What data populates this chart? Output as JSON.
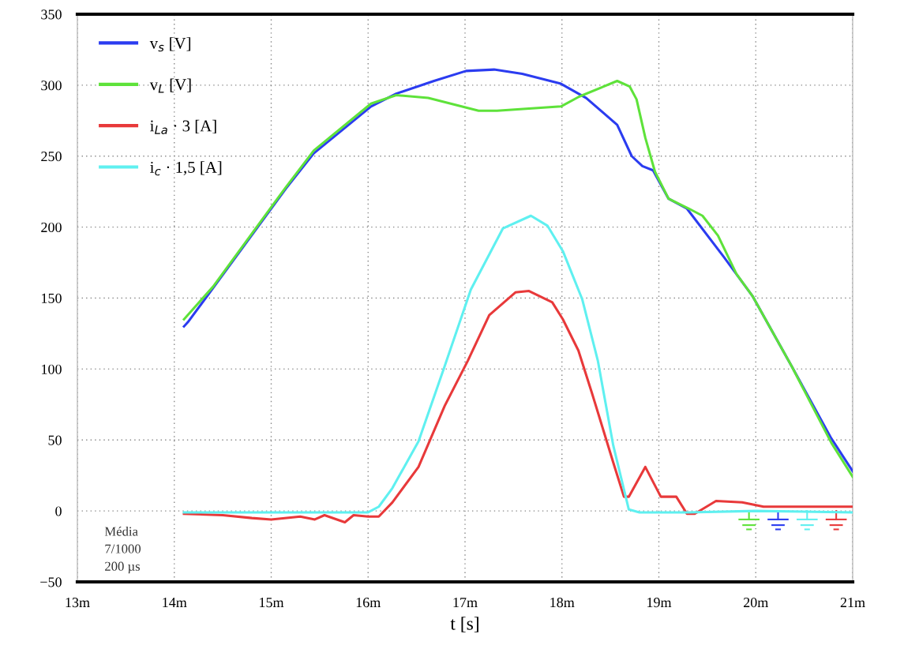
{
  "chart_data": {
    "type": "line",
    "xlabel": "t [s]",
    "xlim": [
      13,
      21
    ],
    "xticks": [
      {
        "value": 13,
        "label": "13m"
      },
      {
        "value": 14,
        "label": "14m"
      },
      {
        "value": 15,
        "label": "15m"
      },
      {
        "value": 16,
        "label": "16m"
      },
      {
        "value": 17,
        "label": "17m"
      },
      {
        "value": 18,
        "label": "18m"
      },
      {
        "value": 19,
        "label": "19m"
      },
      {
        "value": 20,
        "label": "20m"
      },
      {
        "value": 21,
        "label": "21m"
      }
    ],
    "ylim": [
      -50,
      350
    ],
    "yticks": [
      -50,
      0,
      50,
      100,
      150,
      200,
      250,
      300,
      350
    ],
    "grid": true,
    "legend": "top left",
    "line_style": "solid",
    "marker": "none",
    "annotations": [
      "Média\n7/1000\n200 µs"
    ],
    "series": [
      {
        "name": "v$_{s}$ [V]",
        "color": "#2b3cf0",
        "x": [
          14.1,
          14.14,
          14.4,
          15.15,
          15.44,
          16.03,
          16.29,
          16.68,
          17.01,
          17.3,
          17.59,
          17.99,
          18.25,
          18.57,
          18.72,
          18.83,
          18.94,
          19.1,
          19.29,
          19.67,
          19.97,
          20.37,
          20.78,
          21.0
        ],
        "values": [
          130,
          133,
          157,
          227,
          252,
          285,
          294,
          303,
          310,
          311,
          308,
          301,
          291,
          272,
          250,
          243,
          240,
          220,
          213,
          179,
          151,
          102,
          51,
          28
        ]
      },
      {
        "name": "v$_{L}$ [V]",
        "color": "#5ee23a",
        "x": [
          14.1,
          14.4,
          15.15,
          15.44,
          16.03,
          16.29,
          16.62,
          17.14,
          17.33,
          17.99,
          18.18,
          18.57,
          18.7,
          18.77,
          18.86,
          18.96,
          19.1,
          19.31,
          19.45,
          19.61,
          19.8,
          19.97,
          20.37,
          20.78,
          21.0
        ],
        "values": [
          135,
          158,
          228,
          254,
          287,
          293,
          291,
          282,
          282,
          285,
          292,
          303,
          299,
          290,
          263,
          239,
          220,
          213,
          208,
          194,
          167,
          151,
          102,
          48,
          24
        ]
      },
      {
        "name": "i$_{La}$ · 3 [A]",
        "color": "#e8393a",
        "x": [
          14.1,
          14.5,
          14.8,
          15.0,
          15.3,
          15.45,
          15.55,
          15.76,
          15.85,
          16.0,
          16.11,
          16.25,
          16.52,
          16.79,
          17.03,
          17.25,
          17.52,
          17.66,
          17.9,
          18.01,
          18.17,
          18.31,
          18.53,
          18.64,
          18.69,
          18.86,
          19.02,
          19.18,
          19.29,
          19.37,
          19.59,
          19.86,
          20.08,
          20.45,
          21.0
        ],
        "values": [
          -2,
          -3,
          -5,
          -6,
          -4,
          -6,
          -3,
          -8,
          -3,
          -4,
          -4,
          6,
          31,
          74,
          106,
          138,
          154,
          155,
          147,
          135,
          113,
          83,
          34,
          10,
          10,
          31,
          10,
          10,
          -2,
          -2,
          7,
          6,
          3,
          3,
          3
        ]
      },
      {
        "name": "i$_{c}$ · 1,5 [A]",
        "color": "#5ff0f0",
        "x": [
          14.1,
          15.0,
          16.0,
          16.11,
          16.25,
          16.52,
          16.79,
          17.06,
          17.39,
          17.68,
          17.85,
          18.01,
          18.21,
          18.37,
          18.53,
          18.69,
          18.8,
          19.3,
          20.0,
          21.0
        ],
        "values": [
          -1,
          -1,
          -1,
          3,
          16,
          49,
          102,
          156,
          199,
          208,
          201,
          183,
          149,
          106,
          46,
          1,
          -1,
          -1,
          0,
          -1
        ]
      }
    ]
  }
}
